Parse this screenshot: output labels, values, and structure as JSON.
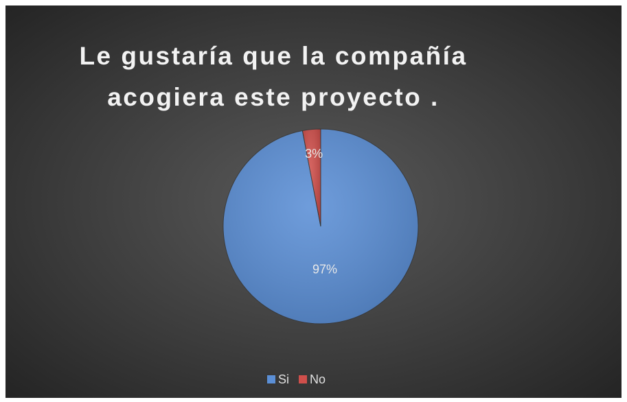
{
  "chart_data": {
    "type": "pie",
    "title": "Le gustaría que la compañía acogiera este proyecto .",
    "categories": [
      "Si",
      "No"
    ],
    "values": [
      97,
      3
    ],
    "value_labels": [
      "97%",
      "3%"
    ],
    "colors": [
      "#5b8fd6",
      "#cf4f4b"
    ],
    "legend": "bottom"
  }
}
